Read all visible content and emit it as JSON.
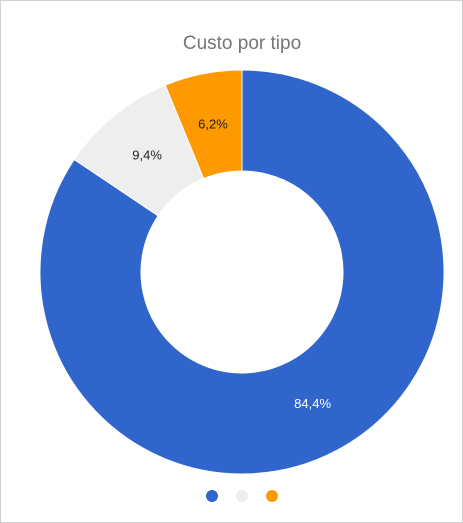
{
  "chart_data": {
    "type": "pie",
    "title": "Custo por tipo",
    "categories": [
      null,
      null,
      null
    ],
    "values": [
      84.4,
      9.4,
      6.2
    ],
    "value_labels": [
      "84,4%",
      "9,4%",
      "6,2%"
    ],
    "colors": [
      "#3066cc",
      "#eeeeee",
      "#ff9900"
    ],
    "donut": true,
    "legend": "bottom"
  }
}
